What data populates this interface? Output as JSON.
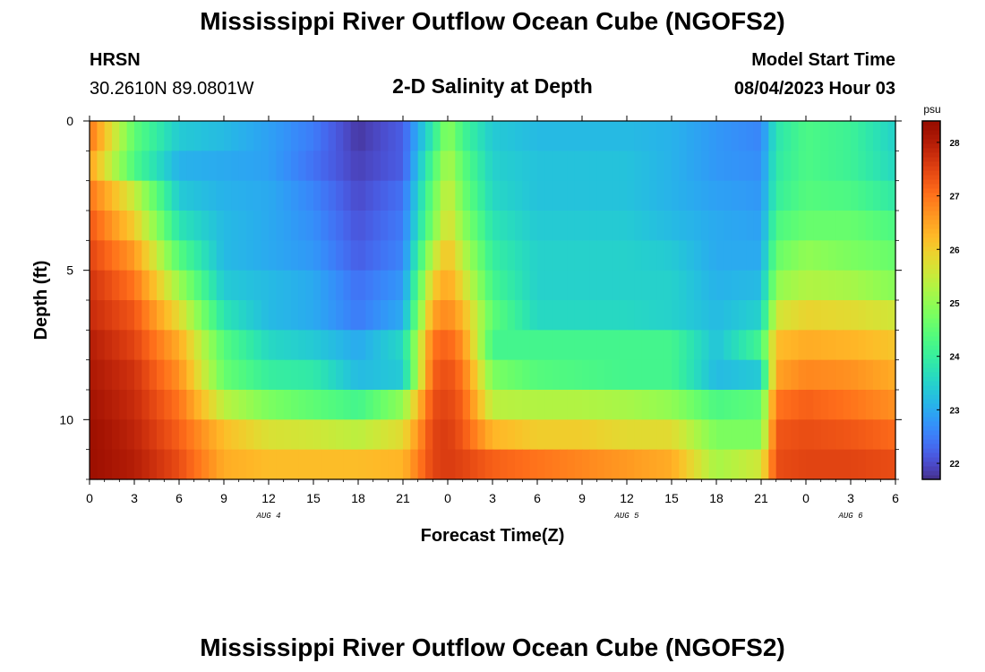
{
  "header": {
    "title": "Mississippi River Outflow Ocean Cube (NGOFS2)",
    "station_name": "HRSN",
    "station_coords": "30.2610N  89.0801W",
    "plot_title": "2-D Salinity at Depth",
    "model_start_label": "Model Start Time",
    "model_start_value": "08/04/2023 Hour 03"
  },
  "footer": {
    "title": "Mississippi River Outflow Ocean Cube (NGOFS2)"
  },
  "chart_data": {
    "type": "heatmap",
    "xlabel": "Forecast Time(Z)",
    "ylabel": "Depth (ft)",
    "x_range_hours": [
      0,
      54
    ],
    "y_range": [
      0,
      12
    ],
    "y_inverted": true,
    "x_tick_labels": [
      "0",
      "3",
      "6",
      "9",
      "12",
      "15",
      "18",
      "21",
      "0",
      "3",
      "6",
      "9",
      "12",
      "15",
      "18",
      "21",
      "0",
      "3",
      "6"
    ],
    "x_tick_hours": [
      0,
      3,
      6,
      9,
      12,
      15,
      18,
      21,
      24,
      27,
      30,
      33,
      36,
      39,
      42,
      45,
      48,
      51,
      54
    ],
    "date_labels": [
      {
        "label": "AUG 4",
        "hour": 12
      },
      {
        "label": "AUG 5",
        "hour": 36
      },
      {
        "label": "AUG 6",
        "hour": 51
      }
    ],
    "y_tick_labels": [
      "0",
      "5",
      "10"
    ],
    "y_tick_values": [
      0,
      5,
      10
    ],
    "colorbar": {
      "unit": "psu",
      "min": 21.7,
      "max": 28.4,
      "tick_values": [
        22,
        23,
        24,
        25,
        26,
        27,
        28
      ],
      "tick_labels": [
        "22",
        "23",
        "24",
        "25",
        "26",
        "27",
        "28"
      ],
      "colormap": "turbo"
    },
    "depth_levels_ft": [
      0.5,
      1.5,
      2.5,
      3.5,
      4.5,
      5.5,
      6.5,
      7.5,
      8.5,
      9.5,
      10.5,
      11.5
    ],
    "time_keyframes_hours": [
      0,
      3,
      6,
      9,
      12,
      15,
      18,
      21,
      23,
      24,
      25,
      27,
      30,
      33,
      36,
      39,
      42,
      45,
      46,
      48,
      51,
      54
    ],
    "salinity_psu": [
      [
        27.0,
        24.5,
        23.4,
        23.2,
        22.9,
        22.5,
        21.8,
        22.2,
        23.9,
        25.0,
        24.2,
        23.4,
        23.2,
        23.2,
        23.2,
        23.1,
        22.8,
        22.6,
        23.8,
        24.3,
        24.1,
        23.5
      ],
      [
        26.5,
        24.3,
        23.1,
        23.0,
        22.9,
        22.4,
        21.9,
        22.2,
        24.3,
        25.3,
        24.5,
        23.5,
        23.3,
        23.3,
        23.3,
        23.1,
        22.8,
        22.7,
        23.9,
        24.3,
        24.1,
        23.6
      ],
      [
        27.0,
        25.5,
        23.4,
        23.1,
        23.0,
        22.6,
        22.0,
        22.4,
        24.6,
        25.6,
        24.7,
        23.6,
        23.3,
        23.3,
        23.3,
        23.1,
        22.9,
        22.8,
        24.0,
        24.4,
        24.3,
        23.9
      ],
      [
        27.3,
        26.0,
        23.8,
        23.2,
        23.0,
        22.7,
        22.1,
        22.5,
        24.8,
        25.8,
        25.0,
        23.8,
        23.4,
        23.4,
        23.4,
        23.2,
        23.0,
        22.9,
        24.3,
        24.6,
        24.6,
        24.3
      ],
      [
        27.5,
        26.6,
        24.4,
        23.2,
        23.0,
        22.8,
        22.2,
        22.6,
        25.4,
        26.2,
        25.4,
        24.0,
        23.5,
        23.5,
        23.5,
        23.4,
        23.0,
        23.0,
        24.6,
        25.0,
        24.8,
        24.6
      ],
      [
        27.7,
        27.0,
        25.1,
        23.4,
        23.2,
        23.0,
        22.4,
        22.8,
        26.0,
        26.5,
        25.8,
        24.2,
        23.5,
        23.5,
        23.5,
        23.5,
        23.1,
        23.2,
        25.0,
        25.3,
        25.2,
        24.9
      ],
      [
        27.8,
        27.3,
        25.8,
        23.8,
        23.2,
        23.0,
        22.5,
        23.0,
        26.5,
        26.8,
        26.3,
        24.5,
        23.6,
        23.6,
        23.6,
        23.5,
        23.2,
        23.5,
        25.6,
        25.9,
        25.8,
        25.6
      ],
      [
        28.0,
        27.5,
        26.4,
        24.4,
        23.6,
        23.4,
        23.0,
        23.6,
        27.0,
        27.2,
        26.7,
        24.2,
        24.2,
        24.2,
        24.2,
        24.2,
        23.3,
        24.2,
        26.2,
        26.4,
        26.3,
        26.1
      ],
      [
        28.1,
        27.7,
        26.7,
        24.6,
        24.0,
        23.9,
        23.2,
        23.4,
        27.2,
        27.4,
        27.0,
        24.8,
        24.4,
        24.3,
        24.2,
        24.2,
        23.2,
        23.4,
        26.5,
        26.8,
        26.7,
        26.4
      ],
      [
        28.2,
        27.8,
        27.0,
        25.4,
        24.8,
        24.5,
        24.2,
        25.0,
        27.4,
        27.5,
        27.2,
        25.4,
        25.3,
        25.3,
        25.2,
        25.0,
        24.3,
        24.5,
        27.0,
        27.2,
        27.0,
        26.7
      ],
      [
        28.3,
        27.9,
        27.2,
        26.2,
        25.7,
        25.6,
        25.4,
        25.8,
        27.5,
        27.6,
        27.3,
        26.3,
        26.0,
        26.0,
        25.8,
        25.8,
        24.8,
        24.8,
        27.3,
        27.4,
        27.3,
        27.1
      ],
      [
        28.3,
        28.0,
        27.4,
        26.4,
        26.2,
        26.2,
        26.2,
        26.3,
        27.5,
        27.6,
        27.5,
        27.2,
        27.0,
        26.8,
        26.6,
        26.4,
        25.2,
        25.6,
        27.4,
        27.5,
        27.5,
        27.4
      ]
    ]
  }
}
